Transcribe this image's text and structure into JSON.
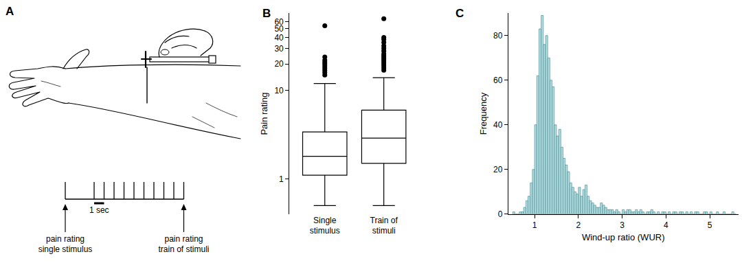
{
  "panel_a": {
    "title": "A",
    "labels": [
      [
        "pain rating",
        "single stimulus"
      ],
      [
        "pain rating",
        "train of stimuli"
      ]
    ],
    "interval_label": "1 sec",
    "train_stimuli": 10
  },
  "chart_data": [
    {
      "type": "box",
      "title": "B",
      "y_label": "Pain rating",
      "categories": [
        "Single stimulus",
        "Train of stimuli"
      ],
      "boxes": [
        {
          "lower_whisker": 0.5,
          "q1": 1.1,
          "median": 1.8,
          "q3": 3.4,
          "upper_whisker": 12,
          "outliers": [
            15,
            16,
            17,
            18,
            19,
            20,
            21,
            22,
            24,
            54
          ]
        },
        {
          "lower_whisker": 0.5,
          "q1": 1.5,
          "median": 2.9,
          "q3": 6.0,
          "upper_whisker": 14,
          "outliers": [
            17,
            18,
            19,
            20,
            21,
            22,
            23,
            24,
            25,
            26,
            28,
            30,
            32,
            35,
            38,
            40,
            65
          ]
        }
      ],
      "color": "#000000",
      "log": "y",
      "ylim": [
        0.4,
        75
      ],
      "yticks": [
        1,
        10,
        20,
        30,
        40,
        50,
        60
      ]
    },
    {
      "type": "histogram",
      "title": "C",
      "x_label": "Wind-up ratio (WUR)",
      "y_label": "Frequency",
      "bins": [
        0.5,
        0.55,
        0.6,
        0.65,
        0.7,
        0.75,
        0.8,
        0.85,
        0.9,
        0.95,
        1,
        1.05,
        1.1,
        1.15,
        1.2,
        1.25,
        1.3,
        1.35,
        1.4,
        1.45,
        1.5,
        1.55,
        1.6,
        1.65,
        1.7,
        1.75,
        1.8,
        1.85,
        1.9,
        1.95,
        2,
        2.05,
        2.1,
        2.15,
        2.2,
        2.25,
        2.3,
        2.35,
        2.4,
        2.45,
        2.5,
        2.55,
        2.6,
        2.65,
        2.7,
        2.75,
        2.8,
        2.85,
        2.9,
        2.95,
        3,
        3.05,
        3.1,
        3.15,
        3.2,
        3.25,
        3.3,
        3.35,
        3.4,
        3.45,
        3.5,
        3.55,
        3.6,
        3.65,
        3.7,
        3.75,
        3.8,
        3.85,
        3.9,
        3.95,
        4,
        4.05,
        4.1,
        4.15,
        4.2,
        4.25,
        4.3,
        4.35,
        4.4,
        4.45,
        4.5,
        4.55,
        4.6,
        4.65,
        4.7,
        4.75,
        4.8,
        4.85,
        4.9,
        4.95,
        5,
        5.05,
        5.1,
        5.15,
        5.2,
        5.25,
        5.3,
        5.35,
        5.4,
        5.45,
        5.5,
        5.55,
        5.6
      ],
      "counts": [
        1,
        0,
        0,
        1,
        1,
        3,
        6,
        8,
        14,
        20,
        40,
        62,
        83,
        89,
        76,
        80,
        70,
        60,
        57,
        40,
        35,
        38,
        30,
        25,
        22,
        19,
        14,
        12,
        10,
        9,
        12,
        8,
        11,
        13,
        8,
        6,
        5,
        4,
        3,
        3,
        5,
        4,
        3,
        2,
        2,
        2,
        1,
        2,
        1,
        0,
        2,
        1,
        2,
        2,
        1,
        1,
        2,
        1,
        2,
        1,
        0,
        1,
        1,
        2,
        1,
        0,
        1,
        0,
        1,
        1,
        0,
        1,
        0,
        1,
        1,
        0,
        1,
        1,
        0,
        1,
        0,
        1,
        0,
        1,
        1,
        0,
        0,
        1,
        1,
        0,
        1,
        0,
        0,
        1,
        0,
        0,
        1,
        0,
        0,
        0,
        1,
        0
      ],
      "color": "#b0dde0",
      "xlim": [
        0.4,
        5.65
      ],
      "xticks": [
        1,
        2,
        3,
        4,
        5
      ],
      "ylim": [
        0,
        90
      ],
      "yticks": [
        0,
        20,
        40,
        60,
        80
      ]
    }
  ]
}
